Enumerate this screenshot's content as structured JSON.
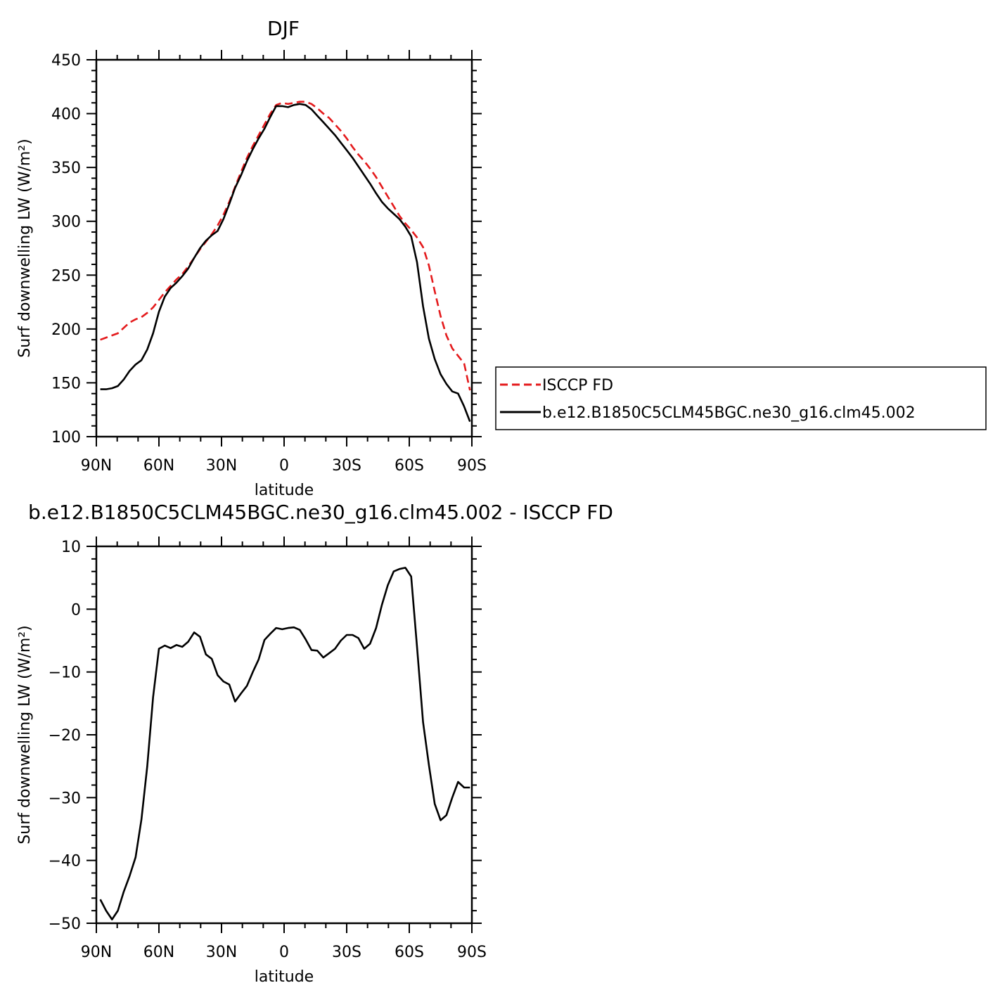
{
  "chart_data": [
    {
      "type": "line",
      "title": "DJF",
      "xlabel": "latitude",
      "ylabel": "Surf downwelling LW (W/m²)",
      "xlim": [
        -90,
        90
      ],
      "ylim": [
        100,
        450
      ],
      "yticks": [
        100,
        150,
        200,
        250,
        300,
        350,
        400,
        450
      ],
      "xticks": [
        {
          "value": -90,
          "label": "90N"
        },
        {
          "value": -60,
          "label": "60N"
        },
        {
          "value": -30,
          "label": "30N"
        },
        {
          "value": 0,
          "label": "0"
        },
        {
          "value": 30,
          "label": "30S"
        },
        {
          "value": 60,
          "label": "60S"
        },
        {
          "value": 90,
          "label": "90S"
        }
      ],
      "grid": false,
      "legend": "right",
      "x": [
        -88.1,
        -85.3,
        -82.5,
        -79.7,
        -76.9,
        -74.1,
        -71.2,
        -68.4,
        -65.6,
        -62.8,
        -60,
        -57.2,
        -54.4,
        -51.6,
        -48.8,
        -46,
        -43.1,
        -40.3,
        -37.5,
        -34.7,
        -31.9,
        -29.1,
        -26.3,
        -23.5,
        -20.6,
        -17.8,
        -15,
        -12.2,
        -9.4,
        -6.6,
        -3.8,
        -0.9,
        1.9,
        4.7,
        7.5,
        10.3,
        13.1,
        15.9,
        18.8,
        21.6,
        24.4,
        27.2,
        30,
        32.8,
        35.6,
        38.4,
        41.2,
        44.1,
        46.9,
        49.7,
        52.5,
        55.3,
        58.1,
        60.9,
        63.7,
        66.6,
        69.4,
        72.2,
        75,
        77.8,
        80.6,
        83.4,
        86.3,
        89.1
      ],
      "series": [
        {
          "name": "ISCCP FD",
          "color": "#e41a1c",
          "dash": "dashed",
          "values": [
            190,
            192,
            194,
            196,
            201,
            206,
            209,
            211,
            215,
            220,
            227,
            234,
            240,
            246,
            251,
            258,
            266,
            274,
            281,
            288,
            296,
            306,
            318,
            332,
            346,
            359,
            370,
            380,
            390,
            400,
            408,
            410,
            409,
            410,
            411,
            411,
            409,
            405,
            400,
            396,
            390,
            384,
            377,
            369,
            362,
            356,
            349,
            341,
            332,
            323,
            314,
            305,
            298,
            292,
            285,
            276,
            259,
            235,
            212,
            194,
            182,
            175,
            168,
            143
          ]
        },
        {
          "name": "b.e12.B1850C5CLM45BGC.ne30_g16.clm45.002",
          "color": "#000000",
          "dash": "solid",
          "values": [
            144,
            144,
            145,
            147,
            153,
            161,
            167,
            171,
            181,
            196,
            216,
            230,
            238,
            243,
            249,
            256,
            266,
            275,
            282,
            287,
            291,
            302,
            316,
            331,
            343,
            356,
            367,
            377,
            386,
            397,
            407,
            407,
            406,
            408,
            409,
            408,
            404,
            398,
            392,
            386,
            380,
            373,
            366,
            359,
            351,
            343,
            335,
            326,
            318,
            312,
            307,
            302,
            295,
            286,
            262,
            221,
            191,
            172,
            158,
            149,
            142,
            140,
            128,
            114
          ]
        }
      ]
    },
    {
      "type": "line",
      "title": "b.e12.B1850C5CLM45BGC.ne30_g16.clm45.002 - ISCCP FD",
      "xlabel": "latitude",
      "ylabel": "Surf downwelling LW (W/m²)",
      "xlim": [
        -90,
        90
      ],
      "ylim": [
        -50,
        10
      ],
      "yticks": [
        -50,
        -40,
        -30,
        -20,
        -10,
        0,
        10
      ],
      "xticks": [
        {
          "value": -90,
          "label": "90N"
        },
        {
          "value": -60,
          "label": "60N"
        },
        {
          "value": -30,
          "label": "30N"
        },
        {
          "value": 0,
          "label": "0"
        },
        {
          "value": 30,
          "label": "30S"
        },
        {
          "value": 60,
          "label": "60S"
        },
        {
          "value": 90,
          "label": "90S"
        }
      ],
      "grid": false,
      "x": [
        -88.1,
        -85.3,
        -82.5,
        -79.7,
        -76.9,
        -74.1,
        -71.2,
        -68.4,
        -65.6,
        -62.8,
        -60,
        -57.2,
        -54.4,
        -51.6,
        -48.8,
        -46,
        -43.1,
        -40.3,
        -37.5,
        -34.7,
        -31.9,
        -29.1,
        -26.3,
        -23.5,
        -20.6,
        -17.8,
        -15,
        -12.2,
        -9.4,
        -6.6,
        -3.8,
        -0.9,
        1.9,
        4.7,
        7.5,
        10.3,
        13.1,
        15.9,
        18.8,
        21.6,
        24.4,
        27.2,
        30,
        32.8,
        35.6,
        38.4,
        41.2,
        44.1,
        46.9,
        49.7,
        52.5,
        55.3,
        58.1,
        60.9,
        63.7,
        66.6,
        69.4,
        72.2,
        75,
        77.8,
        80.6,
        83.4,
        86.3,
        89.1
      ],
      "series": [
        {
          "values": [
            -46.2,
            -48.0,
            -49.4,
            -48.0,
            -45.0,
            -42.5,
            -39.5,
            -33.5,
            -25.0,
            -14.0,
            -6.3,
            -5.8,
            -6.2,
            -5.7,
            -6.0,
            -5.2,
            -3.7,
            -4.4,
            -7.2,
            -7.9,
            -10.5,
            -11.5,
            -12.0,
            -14.7,
            -13.4,
            -12.2,
            -10.0,
            -8.0,
            -4.9,
            -3.9,
            -3.0,
            -3.2,
            -3.0,
            -2.9,
            -3.3,
            -4.8,
            -6.5,
            -6.6,
            -7.7,
            -7.0,
            -6.3,
            -5.0,
            -4.1,
            -4.1,
            -4.6,
            -6.3,
            -5.5,
            -3.0,
            0.7,
            3.8,
            6.0,
            6.4,
            6.6,
            5.2,
            -6.0,
            -18.0,
            -24.8,
            -31.0,
            -33.6,
            -32.8,
            -30.0,
            -27.5,
            -28.4,
            -28.4
          ],
          "color": "#000000",
          "dash": "solid"
        }
      ]
    }
  ]
}
